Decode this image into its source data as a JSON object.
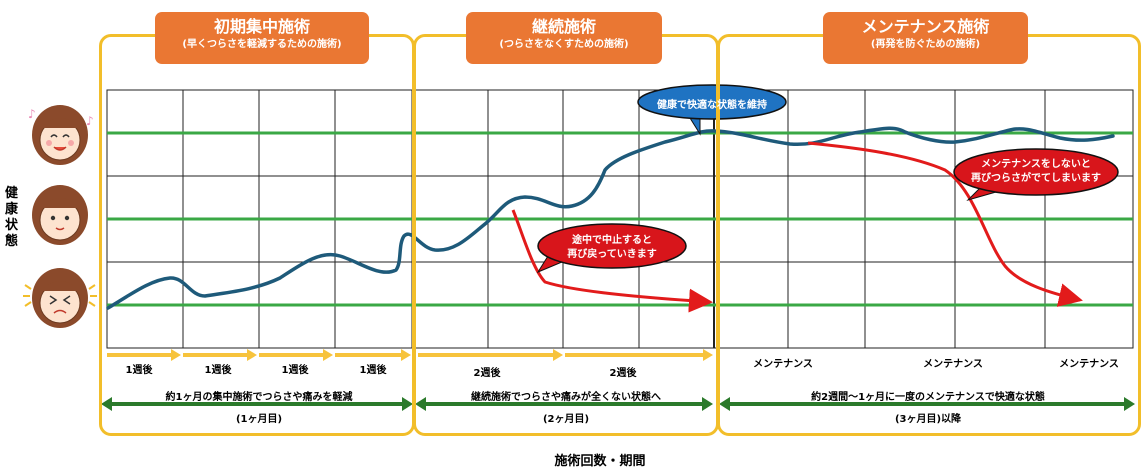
{
  "phases": [
    {
      "title": "初期集中施術",
      "subtitle": "(早くつらさを軽減するための施術)"
    },
    {
      "title": "継続施術",
      "subtitle": "(つらさをなくすための施術)"
    },
    {
      "title": "メンテナンス施術",
      "subtitle": "(再発を防ぐための施術)"
    }
  ],
  "y_axis_label": "健康状態",
  "x_axis_label": "施術回数・期間",
  "faces": [
    "happy-face",
    "neutral-face",
    "pained-face"
  ],
  "callouts": {
    "maintain": "健康で快適な状態を維持",
    "stop_line1": "途中で中止すると",
    "stop_line2": "再び戻っていきます",
    "no_maint_line1": "メンテナンスをしないと",
    "no_maint_line2": "再びつらさがでてしまいます"
  },
  "timeline": {
    "phase1_weeks": [
      "1週後",
      "1週後",
      "1週後",
      "1週後"
    ],
    "phase2_weeks": [
      "2週後",
      "2週後"
    ],
    "phase3_marks": [
      "メンテナンス",
      "メンテナンス",
      "メンテナンス"
    ]
  },
  "descriptions": [
    {
      "text": "約1ヶ月の集中施術でつらさや痛みを軽減",
      "period": "(1ヶ月目)"
    },
    {
      "text": "継続施術でつらさや痛みが全くない状態へ",
      "period": "(2ヶ月目)"
    },
    {
      "text": "約2週間～1ヶ月に一度のメンテナンスで快適な状態",
      "period": "(3ヶ月目)以降"
    }
  ],
  "colors": {
    "health_line": "#1e5a7a",
    "relapse_line": "#e21b1b",
    "level_line": "#3aa845",
    "frame": "#f2be2a",
    "header": "#ea7733",
    "arrow_week": "#f7c33c",
    "arrow_period": "#2b7a2b",
    "callout_blue": "#1f73c2",
    "callout_red": "#d8151b"
  }
}
